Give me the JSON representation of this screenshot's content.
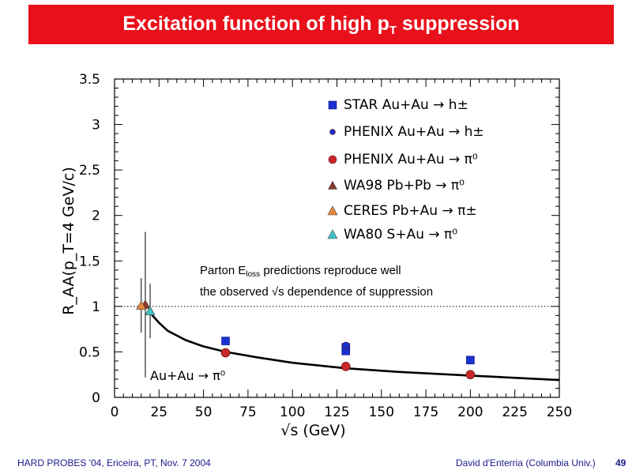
{
  "slide": {
    "title_pre": "Excitation function of  high p",
    "title_sub": "T",
    "title_post": " suppression",
    "footer_left": "HARD PROBES '04, Ericeira, PT, Nov. 7 2004",
    "footer_right": "David d'Enterria (Columbia Univ.)",
    "page_number": "49"
  },
  "chart_data": {
    "type": "scatter",
    "xlabel": "√s (GeV)",
    "ylabel": "R_AA(p_T=4 GeV/c)",
    "xlim": [
      0,
      250
    ],
    "ylim": [
      0,
      3.5
    ],
    "x_ticks": [
      "0",
      "25",
      "50",
      "75",
      "100",
      "125",
      "150",
      "175",
      "200",
      "225",
      "250"
    ],
    "y_ticks": [
      "0",
      "0.5",
      "1",
      "1.5",
      "2",
      "2.5",
      "3",
      "3.5"
    ],
    "reference_line": {
      "y": 1,
      "style": "dotted"
    },
    "annotation_line1": "Parton E",
    "annotation_sub": "loss",
    "annotation_line1_post": " predictions reproduce well",
    "annotation_line2": "the observed √s dependence of suppression",
    "curve_label": "Au+Au  →  π⁰",
    "series": [
      {
        "name": "STAR Au+Au  →  h±",
        "marker": "square",
        "color": "#1a2fd0",
        "points": [
          {
            "x": 62.4,
            "y": 0.62
          },
          {
            "x": 130,
            "y": 0.55
          },
          {
            "x": 130,
            "y": 0.51
          },
          {
            "x": 200,
            "y": 0.41
          }
        ]
      },
      {
        "name": "PHENIX Au+Au  →  h±",
        "marker": "circle",
        "color": "#1a2fd0",
        "points": [
          {
            "x": 130,
            "y": 0.57
          }
        ]
      },
      {
        "name": "PHENIX Au+Au  →  π⁰",
        "marker": "circle",
        "color": "#c8282a",
        "points": [
          {
            "x": 62.4,
            "y": 0.49
          },
          {
            "x": 130,
            "y": 0.34
          },
          {
            "x": 200,
            "y": 0.25
          }
        ]
      },
      {
        "name": "WA98 Pb+Pb  →  π⁰",
        "marker": "triangle",
        "color": "#8b3a2a",
        "points": [
          {
            "x": 17.3,
            "y": 1.02,
            "err": 0.8
          }
        ]
      },
      {
        "name": "CERES  Pb+Au  →  π±",
        "marker": "triangle",
        "color": "#e8843a",
        "points": [
          {
            "x": 15.0,
            "y": 1.01,
            "err": 0.3
          }
        ]
      },
      {
        "name": "WA80 S+Au  →  π⁰",
        "marker": "triangle",
        "color": "#40c0c8",
        "points": [
          {
            "x": 20.0,
            "y": 0.95,
            "err": 0.3
          }
        ]
      }
    ],
    "curve": {
      "x": [
        20,
        25,
        30,
        40,
        50,
        62.4,
        80,
        100,
        130,
        160,
        200,
        250
      ],
      "y": [
        0.93,
        0.82,
        0.73,
        0.63,
        0.56,
        0.5,
        0.44,
        0.38,
        0.32,
        0.28,
        0.24,
        0.19
      ]
    }
  }
}
